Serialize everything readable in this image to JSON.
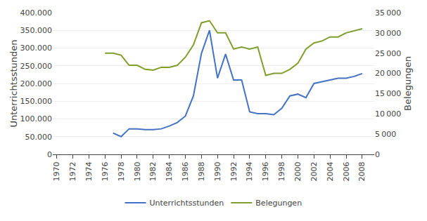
{
  "chart_data": {
    "type": "line",
    "ylabel": "Unterrichtsstunden",
    "y2label": "Belegungen",
    "series": [
      {
        "name": "Unterrichtsstunden",
        "color": "#4472C4",
        "axis": "y",
        "x": [
          1977,
          1978,
          1979,
          1980,
          1981,
          1982,
          1983,
          1984,
          1985,
          1986,
          1987,
          1988,
          1989,
          1990,
          1991,
          1992,
          1993,
          1994,
          1995,
          1996,
          1997,
          1998,
          1999,
          2000,
          2001,
          2002,
          2003,
          2004,
          2005,
          2006,
          2007,
          2008
        ],
        "values": [
          60000,
          50000,
          72000,
          72000,
          70000,
          70000,
          72000,
          80000,
          90000,
          108000,
          165000,
          285000,
          350000,
          215000,
          283000,
          210000,
          210000,
          120000,
          115000,
          115000,
          112000,
          130000,
          165000,
          170000,
          160000,
          200000,
          205000,
          210000,
          215000,
          215000,
          220000,
          228000
        ]
      },
      {
        "name": "Belegungen",
        "color": "#7F9E2E",
        "axis": "y2",
        "x": [
          1976,
          1977,
          1978,
          1979,
          1980,
          1981,
          1982,
          1983,
          1984,
          1985,
          1986,
          1987,
          1988,
          1989,
          1990,
          1991,
          1992,
          1993,
          1994,
          1995,
          1996,
          1997,
          1998,
          1999,
          2000,
          2001,
          2002,
          2003,
          2004,
          2005,
          2006,
          2007,
          2008
        ],
        "values": [
          25000,
          25000,
          24500,
          22000,
          22000,
          21000,
          20800,
          21500,
          21500,
          22000,
          24000,
          27000,
          32500,
          33000,
          30000,
          30000,
          26000,
          26500,
          26000,
          26500,
          19500,
          20000,
          20000,
          21000,
          22500,
          26000,
          27500,
          28000,
          29000,
          29000,
          30000,
          30500,
          31000
        ]
      }
    ],
    "xlim": [
      1969.5,
      2009.5
    ],
    "xticks": [
      1970,
      1972,
      1974,
      1976,
      1978,
      1980,
      1982,
      1984,
      1986,
      1988,
      1990,
      1992,
      1994,
      1996,
      1998,
      2000,
      2002,
      2004,
      2006,
      2008
    ],
    "ylim": [
      0,
      400000
    ],
    "yticks": [
      0,
      {
        "value": 50000,
        "label": "50.000"
      },
      {
        "value": 100000,
        "label": "100.000"
      },
      {
        "value": 150000,
        "label": "150.000"
      },
      {
        "value": 200000,
        "label": "200.000"
      },
      {
        "value": 250000,
        "label": "250.000"
      },
      {
        "value": 300000,
        "label": "300.000"
      },
      {
        "value": 350000,
        "label": "350.000"
      },
      {
        "value": 400000,
        "label": "400.000"
      }
    ],
    "y2lim": [
      0,
      35000
    ],
    "y2ticks": [
      0,
      {
        "value": 5000,
        "label": "5 000"
      },
      {
        "value": 10000,
        "label": "10 000"
      },
      {
        "value": 15000,
        "label": "15 000"
      },
      {
        "value": 20000,
        "label": "20 000"
      },
      {
        "value": 25000,
        "label": "25 000"
      },
      {
        "value": 30000,
        "label": "30 000"
      },
      {
        "value": 35000,
        "label": "35 000"
      }
    ],
    "grid": true,
    "legend": "bottom"
  }
}
